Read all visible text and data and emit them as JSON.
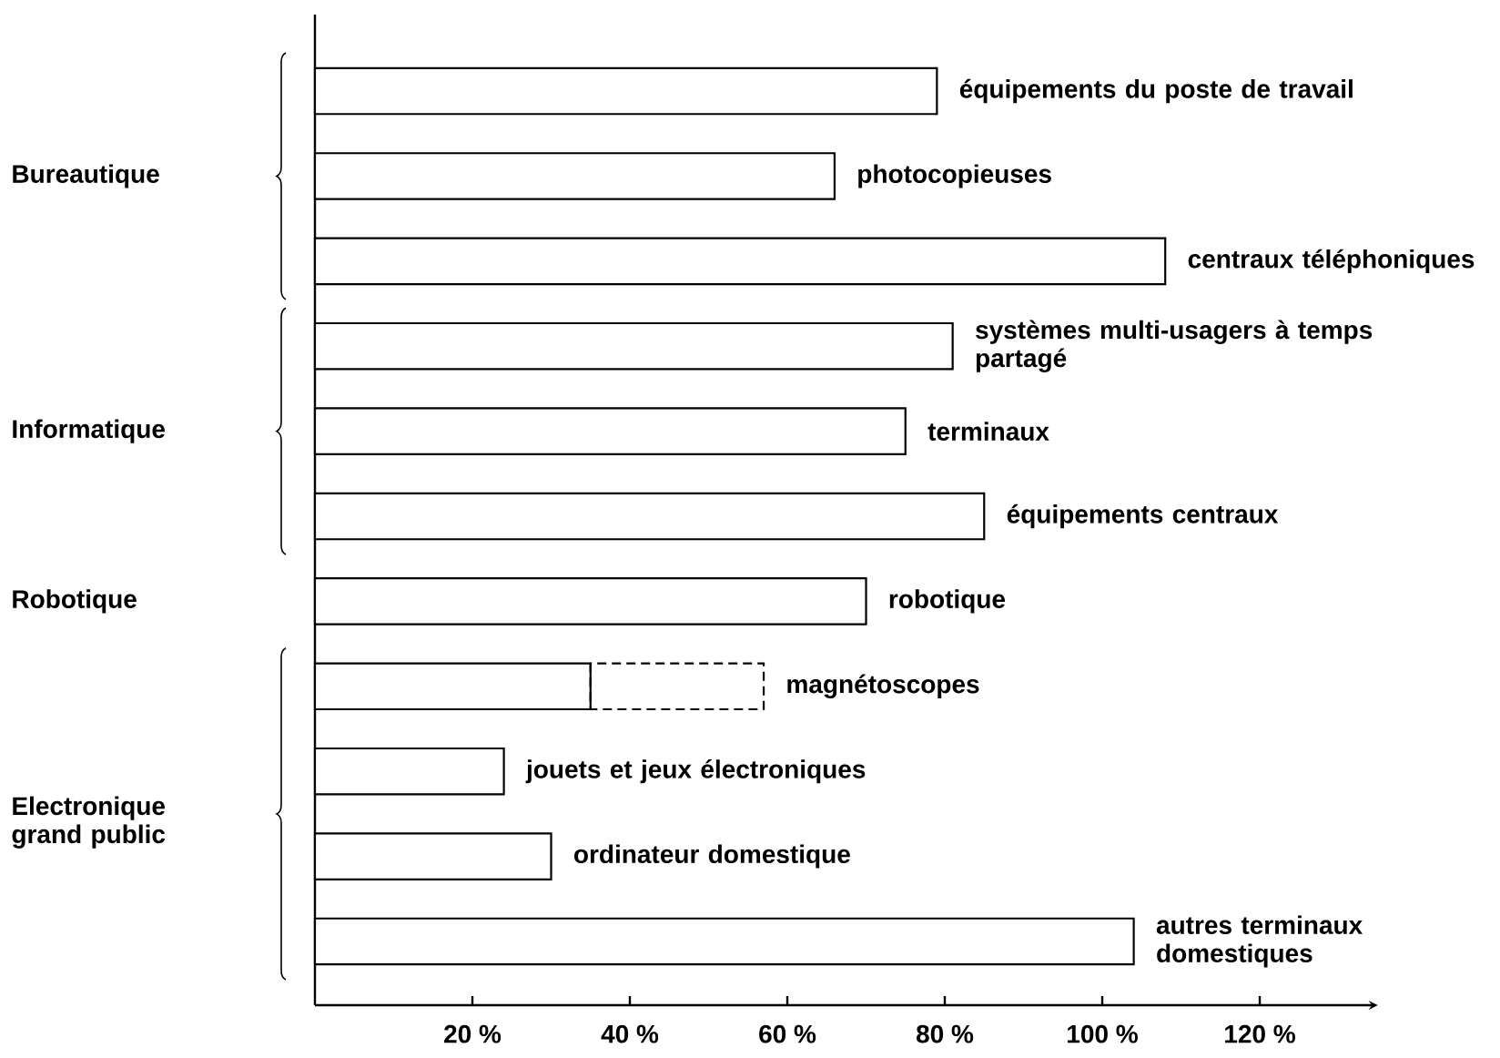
{
  "chart_data": {
    "type": "bar",
    "orientation": "horizontal",
    "stacked": true,
    "categories": [
      "équipements du poste de travail",
      "photocopieuses",
      "centraux téléphoniques",
      "systèmes multi-usagers à temps partagé",
      "terminaux",
      "équipements centraux",
      "robotique",
      "magnétoscopes",
      "jouets et jeux électroniques",
      "ordinateur domestique",
      "autres terminaux domestiques"
    ],
    "series": [
      {
        "color": "#000000",
        "values": [
          79,
          66,
          108,
          81,
          75,
          85,
          70,
          35,
          24,
          30,
          104
        ]
      },
      {
        "color": "#000000",
        "line_style": "dashed",
        "values": [
          null,
          null,
          null,
          null,
          null,
          null,
          null,
          22,
          null,
          null,
          null
        ]
      }
    ],
    "xlim": [
      0,
      135
    ],
    "xticks": [
      {
        "value": 20,
        "label": "20 %"
      },
      {
        "value": 40,
        "label": "40 %"
      },
      {
        "value": 60,
        "label": "60 %"
      },
      {
        "value": 80,
        "label": "80 %"
      },
      {
        "value": 100,
        "label": "100 %"
      },
      {
        "value": 120,
        "label": "120 %"
      }
    ],
    "annotations": [
      "Bureautique",
      "Informatique",
      "Robotique",
      "Electronique grand public"
    ]
  }
}
